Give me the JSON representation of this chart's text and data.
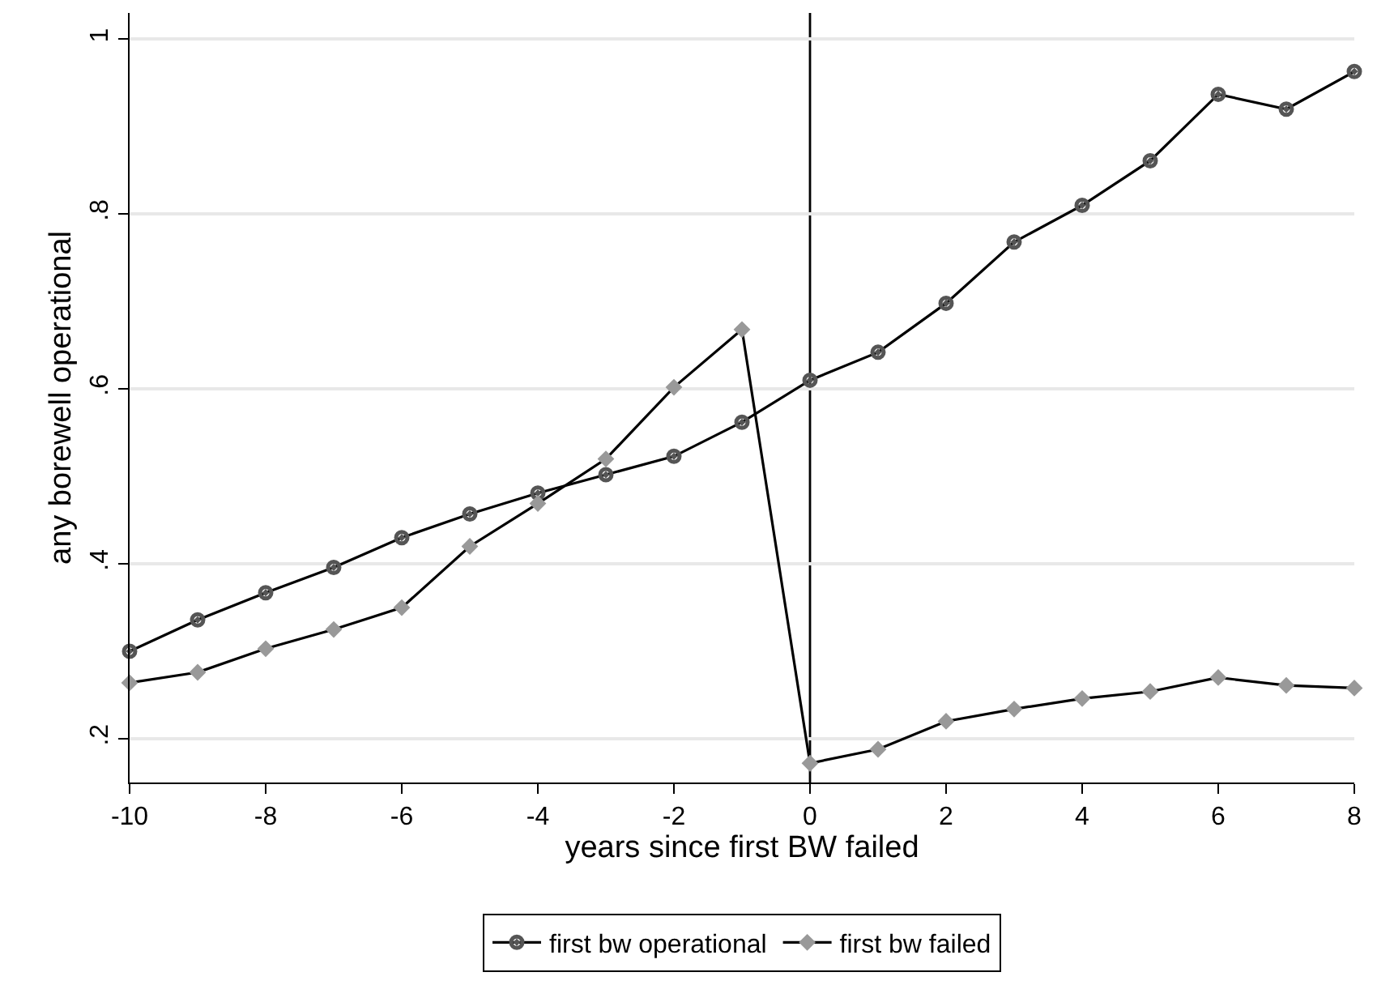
{
  "chart_data": {
    "type": "line",
    "xlabel": "years since first BW failed",
    "ylabel": "any borewell operational",
    "x": [
      -10,
      -9,
      -8,
      -7,
      -6,
      -5,
      -4,
      -3,
      -2,
      -1,
      0,
      1,
      2,
      3,
      4,
      5,
      6,
      7,
      8
    ],
    "series": [
      {
        "name": "first bw operational",
        "color": "#555555",
        "marker": "circle",
        "values": [
          0.3,
          0.336,
          0.367,
          0.396,
          0.43,
          0.457,
          0.481,
          0.502,
          0.523,
          0.562,
          0.61,
          0.642,
          0.698,
          0.768,
          0.81,
          0.861,
          0.937,
          0.92,
          0.963
        ]
      },
      {
        "name": "first bw failed",
        "color": "#999999",
        "marker": "diamond",
        "values": [
          0.264,
          0.276,
          0.303,
          0.325,
          0.35,
          0.42,
          0.469,
          0.52,
          0.602,
          0.668,
          0.172,
          0.188,
          0.22,
          0.234,
          0.246,
          0.254,
          0.27,
          0.261,
          0.258
        ]
      }
    ],
    "xlim": [
      -10,
      8
    ],
    "xticks": [
      -10,
      -8,
      -6,
      -4,
      -2,
      0,
      2,
      4,
      6,
      8
    ],
    "ylim": [
      0.15,
      1.03
    ],
    "yticks": [
      {
        "value": 0.2,
        "label": ".2"
      },
      {
        "value": 0.4,
        "label": ".4"
      },
      {
        "value": 0.6,
        "label": ".6"
      },
      {
        "value": 0.8,
        "label": ".8"
      },
      1
    ],
    "ref_lines": [
      {
        "axis": "x",
        "value": 0,
        "color": "#000000"
      }
    ],
    "grid": "y",
    "legend": "bottom",
    "line_style": "solid"
  }
}
